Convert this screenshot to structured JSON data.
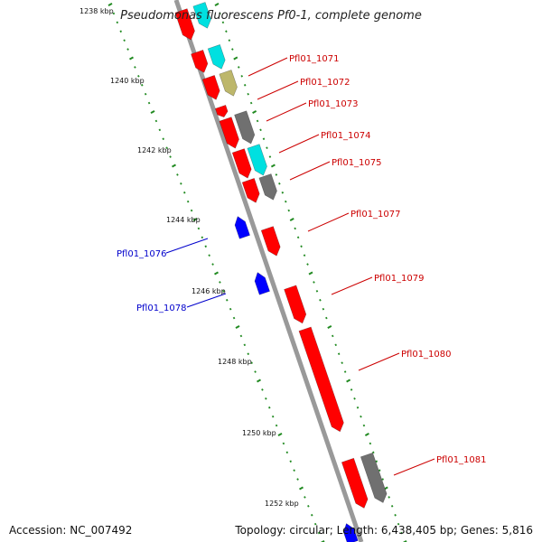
{
  "title": "Pseudomonas fluorescens Pf0-1, complete genome",
  "accession": "Accession: NC_007492",
  "stats": "Topology: circular; Length: 6,438,405 bp; Genes: 5,816",
  "colors": {
    "forward_cds": "#ff0000",
    "reverse_cds": "#0000ff",
    "cyan_feature": "#00e0e0",
    "gray_feature": "#707070",
    "olive_feature": "#bdb76b",
    "backbone": "#999999",
    "tick": "#228b22",
    "red_label": "#cc0000",
    "blue_label": "#0000cc"
  },
  "kbp_labels": [
    "1238 kbp",
    "1240 kbp",
    "1242 kbp",
    "1244 kbp",
    "1246 kbp",
    "1248 kbp",
    "1250 kbp",
    "1252 kbp"
  ],
  "gene_labels": [
    {
      "text": "Pfl01_1071",
      "strand": "forward"
    },
    {
      "text": "Pfl01_1072",
      "strand": "forward"
    },
    {
      "text": "Pfl01_1073",
      "strand": "forward"
    },
    {
      "text": "Pfl01_1074",
      "strand": "forward"
    },
    {
      "text": "Pfl01_1075",
      "strand": "forward"
    },
    {
      "text": "Pfl01_1077",
      "strand": "forward"
    },
    {
      "text": "Pfl01_1079",
      "strand": "forward"
    },
    {
      "text": "Pfl01_1080",
      "strand": "forward"
    },
    {
      "text": "Pfl01_1081",
      "strand": "forward"
    },
    {
      "text": "Pfl01_1076",
      "strand": "reverse"
    },
    {
      "text": "Pfl01_1078",
      "strand": "reverse"
    }
  ]
}
